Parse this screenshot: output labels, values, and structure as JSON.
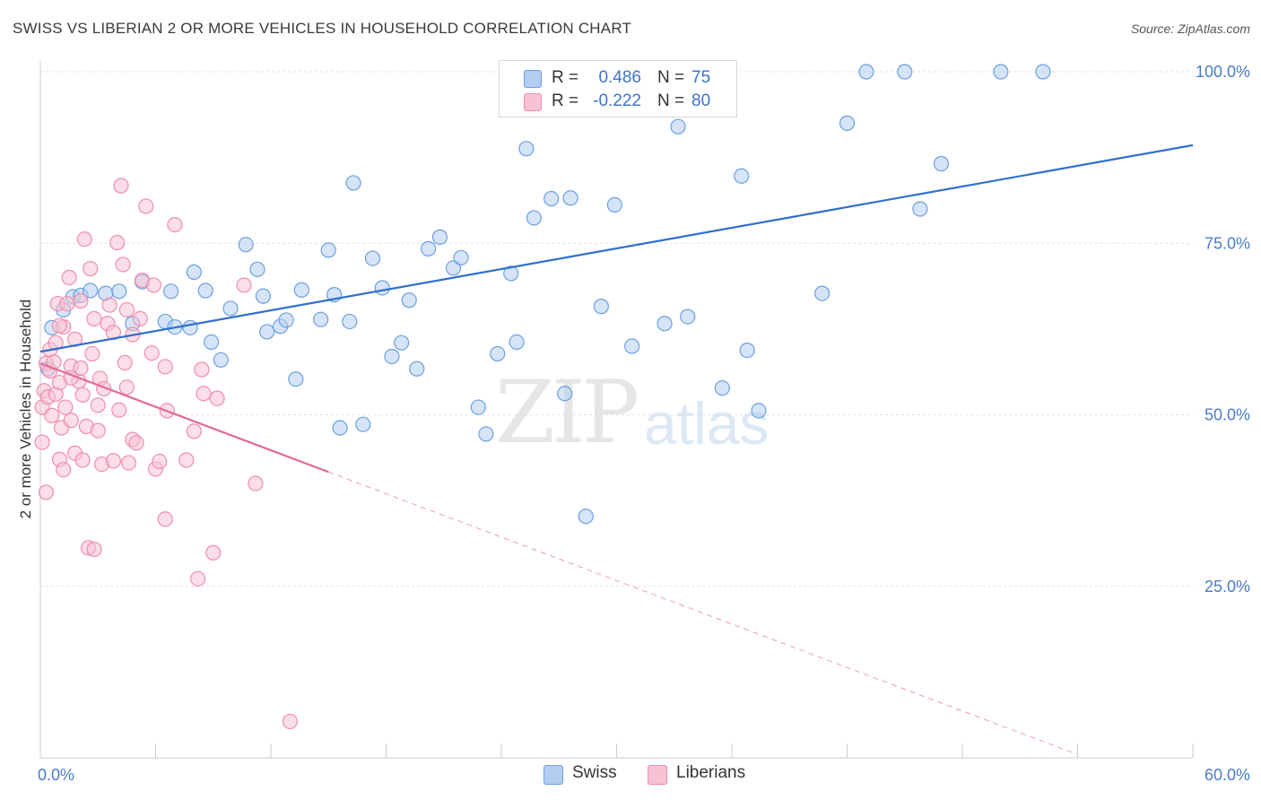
{
  "title": "SWISS VS LIBERIAN 2 OR MORE VEHICLES IN HOUSEHOLD CORRELATION CHART",
  "source": "Source: ZipAtlas.com",
  "watermark": {
    "zip": "ZIP",
    "atlas": "atlas"
  },
  "legend": {
    "rows": [
      {
        "r_label": "R =",
        "r_value": "0.486",
        "n_label": "N =",
        "n_value": "75",
        "color": "#a9c8f0"
      },
      {
        "r_label": "R =",
        "r_value": "-0.222",
        "n_label": "N =",
        "n_value": "80",
        "color": "#f7bcd0"
      }
    ]
  },
  "bottom_legend": [
    "Swiss",
    "Liberians"
  ],
  "chart_data": {
    "type": "scatter",
    "title": "SWISS VS LIBERIAN 2 OR MORE VEHICLES IN HOUSEHOLD CORRELATION CHART",
    "xlabel": "",
    "ylabel": "2 or more Vehicles in Household",
    "xlim": [
      0,
      60
    ],
    "ylim": [
      0,
      100
    ],
    "x_ticks": [
      "0.0%",
      "60.0%"
    ],
    "y_ticks": [
      "25.0%",
      "50.0%",
      "75.0%",
      "100.0%"
    ],
    "y_tick_values": [
      25,
      50,
      75,
      100
    ],
    "grid": true,
    "legend_position": "top-center",
    "series": [
      {
        "name": "Swiss",
        "color": "#6b9fe0",
        "fill": "#b3cdf0",
        "trend": {
          "x1": 0,
          "y1": 59.2,
          "x2": 60,
          "y2": 89.3,
          "solid_until": 60
        },
        "points": [
          [
            0.4,
            56.7
          ],
          [
            0.6,
            62.7
          ],
          [
            1.2,
            65.3
          ],
          [
            1.7,
            67.2
          ],
          [
            2.1,
            67.4
          ],
          [
            2.6,
            68.1
          ],
          [
            3.4,
            67.7
          ],
          [
            4.1,
            68.0
          ],
          [
            4.8,
            63.3
          ],
          [
            5.3,
            69.4
          ],
          [
            6.5,
            63.6
          ],
          [
            7.0,
            62.8
          ],
          [
            6.8,
            68.0
          ],
          [
            7.8,
            62.7
          ],
          [
            8.0,
            70.8
          ],
          [
            8.6,
            68.1
          ],
          [
            8.9,
            60.6
          ],
          [
            9.4,
            58.0
          ],
          [
            9.9,
            65.5
          ],
          [
            10.7,
            74.8
          ],
          [
            11.3,
            71.2
          ],
          [
            11.6,
            67.3
          ],
          [
            11.8,
            62.1
          ],
          [
            12.5,
            62.9
          ],
          [
            12.8,
            63.8
          ],
          [
            13.3,
            55.2
          ],
          [
            13.6,
            68.2
          ],
          [
            14.6,
            63.9
          ],
          [
            15.0,
            74.0
          ],
          [
            15.3,
            67.5
          ],
          [
            15.6,
            48.1
          ],
          [
            16.1,
            63.6
          ],
          [
            16.3,
            83.8
          ],
          [
            16.8,
            48.6
          ],
          [
            17.3,
            72.8
          ],
          [
            17.8,
            68.5
          ],
          [
            18.3,
            58.5
          ],
          [
            18.8,
            60.5
          ],
          [
            19.2,
            66.7
          ],
          [
            19.6,
            56.7
          ],
          [
            20.2,
            74.2
          ],
          [
            20.8,
            75.9
          ],
          [
            21.5,
            71.4
          ],
          [
            21.9,
            72.9
          ],
          [
            22.8,
            51.1
          ],
          [
            23.2,
            47.2
          ],
          [
            23.8,
            58.9
          ],
          [
            24.5,
            70.6
          ],
          [
            24.8,
            60.6
          ],
          [
            25.3,
            88.8
          ],
          [
            25.7,
            78.7
          ],
          [
            26.6,
            81.5
          ],
          [
            27.3,
            53.1
          ],
          [
            27.6,
            81.6
          ],
          [
            28.4,
            35.2
          ],
          [
            29.2,
            65.8
          ],
          [
            29.9,
            80.6
          ],
          [
            30.8,
            60.0
          ],
          [
            31.5,
            100.0
          ],
          [
            32.5,
            63.3
          ],
          [
            33.2,
            92.0
          ],
          [
            33.7,
            64.3
          ],
          [
            35.0,
            96.5
          ],
          [
            35.5,
            53.9
          ],
          [
            36.5,
            84.8
          ],
          [
            36.8,
            59.4
          ],
          [
            37.4,
            50.6
          ],
          [
            40.7,
            67.7
          ],
          [
            42.0,
            92.5
          ],
          [
            43.0,
            100.0
          ],
          [
            45.0,
            100.0
          ],
          [
            45.8,
            80.0
          ],
          [
            46.9,
            86.6
          ],
          [
            50.0,
            100.0
          ],
          [
            52.2,
            100.0
          ]
        ]
      },
      {
        "name": "Liberians",
        "color": "#f08cae",
        "fill": "#f7c2d4",
        "trend": {
          "x1": 0,
          "y1": 57.5,
          "x2": 54,
          "y2": 0.5,
          "solid_until": 15
        },
        "points": [
          [
            0.1,
            51.1
          ],
          [
            0.1,
            46.0
          ],
          [
            0.2,
            53.5
          ],
          [
            0.3,
            38.7
          ],
          [
            0.3,
            57.5
          ],
          [
            0.4,
            52.6
          ],
          [
            0.5,
            56.4
          ],
          [
            0.5,
            59.5
          ],
          [
            0.6,
            49.9
          ],
          [
            0.7,
            57.7
          ],
          [
            0.8,
            53.0
          ],
          [
            0.9,
            66.2
          ],
          [
            1.0,
            54.7
          ],
          [
            1.0,
            43.5
          ],
          [
            1.1,
            48.1
          ],
          [
            1.2,
            42.0
          ],
          [
            1.2,
            62.8
          ],
          [
            1.3,
            51.1
          ],
          [
            1.4,
            66.2
          ],
          [
            1.5,
            70.0
          ],
          [
            1.6,
            49.2
          ],
          [
            1.6,
            57.1
          ],
          [
            1.8,
            44.4
          ],
          [
            1.8,
            61.0
          ],
          [
            2.0,
            54.9
          ],
          [
            2.1,
            66.6
          ],
          [
            2.1,
            56.8
          ],
          [
            2.2,
            52.9
          ],
          [
            2.3,
            75.6
          ],
          [
            2.4,
            48.3
          ],
          [
            2.5,
            30.6
          ],
          [
            2.6,
            71.3
          ],
          [
            2.7,
            58.9
          ],
          [
            2.8,
            30.4
          ],
          [
            2.8,
            64.0
          ],
          [
            3.0,
            47.7
          ],
          [
            3.1,
            55.3
          ],
          [
            3.2,
            42.8
          ],
          [
            3.3,
            53.8
          ],
          [
            3.5,
            63.3
          ],
          [
            3.6,
            66.0
          ],
          [
            3.8,
            43.3
          ],
          [
            3.8,
            62.0
          ],
          [
            4.0,
            75.1
          ],
          [
            4.1,
            50.7
          ],
          [
            4.2,
            83.4
          ],
          [
            4.3,
            71.9
          ],
          [
            4.4,
            57.6
          ],
          [
            4.5,
            65.3
          ],
          [
            4.6,
            43.0
          ],
          [
            4.8,
            46.4
          ],
          [
            4.8,
            61.7
          ],
          [
            5.0,
            45.9
          ],
          [
            5.2,
            64.0
          ],
          [
            5.3,
            69.6
          ],
          [
            5.5,
            80.4
          ],
          [
            5.9,
            68.9
          ],
          [
            6.0,
            42.1
          ],
          [
            6.2,
            43.2
          ],
          [
            6.5,
            57.0
          ],
          [
            6.5,
            34.8
          ],
          [
            6.6,
            50.6
          ],
          [
            7.0,
            77.7
          ],
          [
            7.6,
            43.4
          ],
          [
            8.0,
            47.6
          ],
          [
            8.2,
            26.1
          ],
          [
            8.4,
            56.6
          ],
          [
            8.5,
            53.1
          ],
          [
            9.0,
            29.9
          ],
          [
            9.2,
            52.4
          ],
          [
            10.6,
            68.9
          ],
          [
            11.2,
            40.0
          ],
          [
            13.0,
            5.3
          ],
          [
            1.0,
            63.0
          ],
          [
            3.0,
            51.4
          ],
          [
            2.2,
            43.4
          ],
          [
            4.5,
            54.0
          ],
          [
            5.8,
            59.0
          ],
          [
            1.6,
            55.4
          ],
          [
            0.8,
            60.5
          ]
        ]
      }
    ]
  }
}
